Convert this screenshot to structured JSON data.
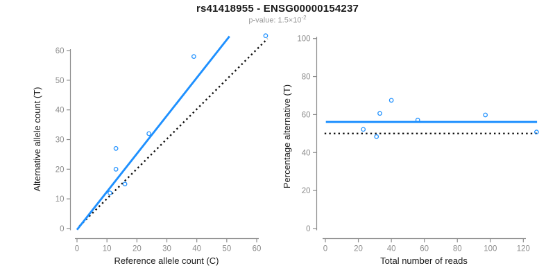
{
  "title": "rs41418955 - ENSG00000154237",
  "subtitle": {
    "text": "p-value: 1.5×10",
    "exponent": "-2"
  },
  "colors": {
    "accent_blue": "#1E90FF",
    "axis_gray": "#8c8c8c",
    "tick_label_gray": "#8c8c8c",
    "text_black": "#1a1a1a",
    "subtitle_gray": "#9a9a9a",
    "dotted_black": "#111111",
    "background": "#ffffff"
  },
  "chart_data": [
    {
      "type": "scatter",
      "panel": "left",
      "xlabel": "Reference allele count (C)",
      "ylabel": "Alternative allele count (T)",
      "xticks": [
        0,
        10,
        20,
        30,
        40,
        50,
        60
      ],
      "yticks": [
        0,
        10,
        20,
        30,
        40,
        50,
        60
      ],
      "xlim": [
        0,
        63
      ],
      "ylim": [
        0,
        65
      ],
      "grid": false,
      "points": [
        {
          "x": 11,
          "y": 12
        },
        {
          "x": 13,
          "y": 20
        },
        {
          "x": 13,
          "y": 27
        },
        {
          "x": 16,
          "y": 15
        },
        {
          "x": 24,
          "y": 32
        },
        {
          "x": 39,
          "y": 58
        },
        {
          "x": 63,
          "y": 65
        }
      ],
      "regression_line": {
        "name": "regression-line",
        "x1": 0,
        "y1": -0.4,
        "x2": 50.9,
        "y2": 64.8,
        "style": "solid",
        "color_key": "accent_blue"
      },
      "identity_line": {
        "name": "identity-line",
        "x1": 0.8,
        "y1": 0.8,
        "x2": 63.6,
        "y2": 64.0,
        "style": "dotted",
        "color_key": "dotted_black"
      }
    },
    {
      "type": "scatter",
      "panel": "right",
      "xlabel": "Total number of reads",
      "ylabel": "Percentage alternative (T)",
      "xticks": [
        0,
        20,
        40,
        60,
        80,
        100,
        120
      ],
      "yticks": [
        0,
        20,
        40,
        60,
        80,
        100
      ],
      "xlim": [
        0,
        128
      ],
      "ylim": [
        0,
        100
      ],
      "grid": false,
      "points": [
        {
          "x": 23,
          "y": 52.2
        },
        {
          "x": 31,
          "y": 48.4
        },
        {
          "x": 33,
          "y": 60.6
        },
        {
          "x": 40,
          "y": 67.5
        },
        {
          "x": 56,
          "y": 57.1
        },
        {
          "x": 97,
          "y": 59.8
        },
        {
          "x": 128,
          "y": 50.8
        }
      ],
      "mean_line": {
        "name": "mean-percentage-line",
        "y": 56.1,
        "x1": 0.3,
        "x2": 128.3,
        "style": "solid",
        "color_key": "accent_blue"
      },
      "null_line": {
        "name": "null-50pct-line",
        "y": 50,
        "x1": -0.5,
        "x2": 129.2,
        "style": "dotted",
        "color_key": "dotted_black"
      }
    }
  ]
}
